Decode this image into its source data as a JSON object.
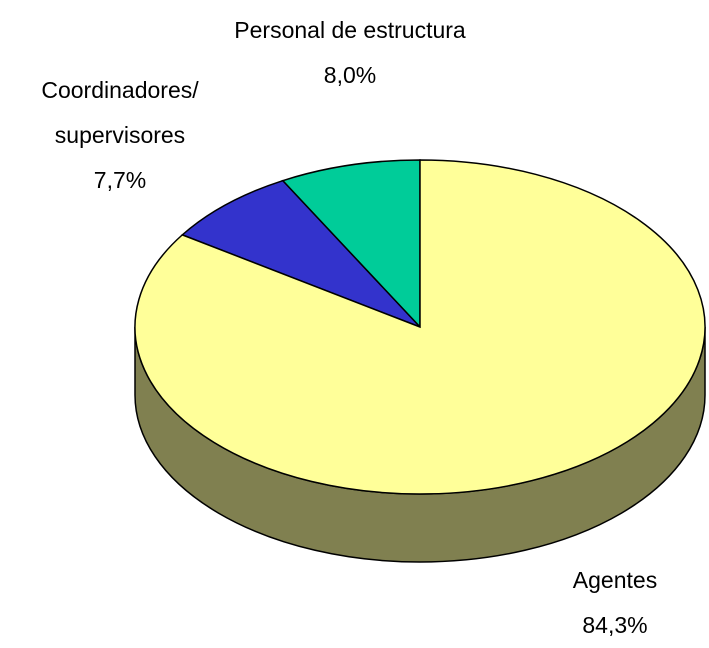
{
  "chart_data": {
    "type": "pie3d",
    "categories": [
      "Personal de estructura",
      "Coordinadores/ supervisores",
      "Agentes"
    ],
    "values": [
      8.0,
      7.7,
      84.3
    ],
    "value_labels": [
      "8,0%",
      "7,7%",
      "84,3%"
    ],
    "colors": [
      "#00cc99",
      "#3333cc",
      "#ffff99"
    ],
    "side_color": "#808050"
  }
}
